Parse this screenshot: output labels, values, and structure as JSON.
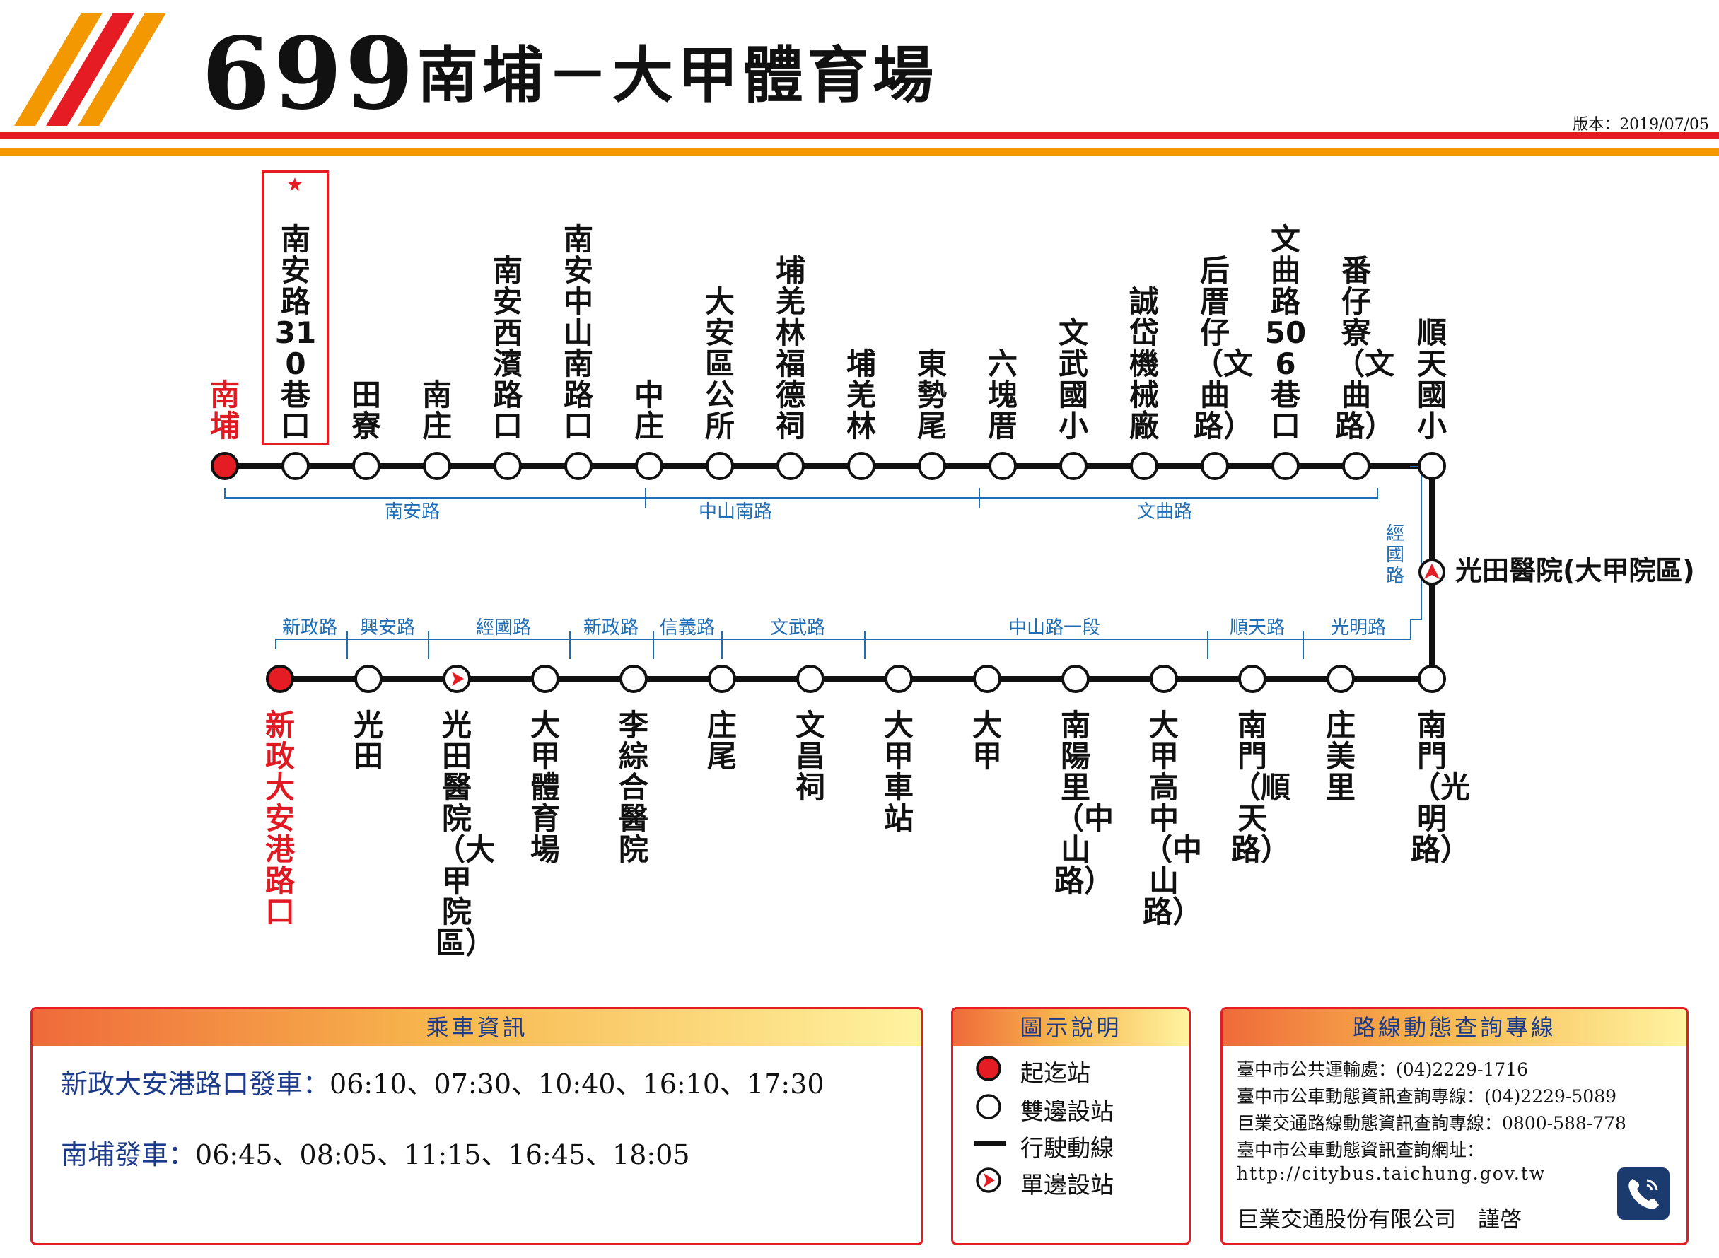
{
  "header": {
    "route_number": "699",
    "route_name": "南埔－大甲體育場",
    "version": "版本：2019/07/05"
  },
  "colors": {
    "red": "#e51c23",
    "orange": "#f39800",
    "road_blue": "#1f6db5",
    "title_blue": "#1b3a8a"
  },
  "route_top": {
    "stops": [
      {
        "name": "南埔",
        "type": "terminal"
      },
      {
        "name": "南安路310巷口",
        "type": "both",
        "highlight": true
      },
      {
        "name": "田寮",
        "type": "both"
      },
      {
        "name": "南庄",
        "type": "both"
      },
      {
        "name": "南安西濱路口",
        "type": "both"
      },
      {
        "name": "南安中山南路口",
        "type": "both"
      },
      {
        "name": "中庄",
        "type": "both"
      },
      {
        "name": "大安區公所",
        "type": "both"
      },
      {
        "name": "埔羌林福德祠",
        "type": "both"
      },
      {
        "name": "埔羌林",
        "type": "both"
      },
      {
        "name": "東勢尾",
        "type": "both"
      },
      {
        "name": "六塊厝",
        "type": "both"
      },
      {
        "name": "文武國小",
        "type": "both"
      },
      {
        "name": "誠岱機械廠",
        "type": "both"
      },
      {
        "name": "后厝仔（文曲路）",
        "type": "both"
      },
      {
        "name": "文曲路506巷口",
        "type": "both"
      },
      {
        "name": "番仔寮（文曲路）",
        "type": "both"
      },
      {
        "name": "順天國小",
        "type": "both"
      }
    ],
    "roads": [
      "南安路",
      "中山南路",
      "文曲路"
    ]
  },
  "branch": {
    "road": "經國路",
    "stop": "光田醫院(大甲院區)"
  },
  "route_bottom": {
    "stops": [
      {
        "name": "新政大安港路口",
        "type": "terminal"
      },
      {
        "name": "光田",
        "type": "both"
      },
      {
        "name": "光田醫院（大甲院區）",
        "type": "single"
      },
      {
        "name": "大甲體育場",
        "type": "both"
      },
      {
        "name": "李綜合醫院",
        "type": "both"
      },
      {
        "name": "庄尾",
        "type": "both"
      },
      {
        "name": "文昌祠",
        "type": "both"
      },
      {
        "name": "大甲車站",
        "type": "both"
      },
      {
        "name": "大甲",
        "type": "both"
      },
      {
        "name": "南陽里（中山路）",
        "type": "both"
      },
      {
        "name": "大甲高中（中山路）",
        "type": "both"
      },
      {
        "name": "南門（順天路）",
        "type": "both"
      },
      {
        "name": "庄美里",
        "type": "both"
      },
      {
        "name": "南門（光明路）",
        "type": "both"
      }
    ],
    "roads": [
      "新政路",
      "興安路",
      "經國路",
      "新政路",
      "信義路",
      "文武路",
      "中山路一段",
      "順天路",
      "光明路"
    ]
  },
  "info_panel": {
    "title": "乘車資訊",
    "lines": [
      {
        "label": "新政大安港路口發車：",
        "times": "06:10、07:30、10:40、16:10、17:30"
      },
      {
        "label": "南埔發車：",
        "times": "06:45、08:05、11:15、16:45、18:05"
      }
    ]
  },
  "legend_panel": {
    "title": "圖示說明",
    "items": [
      {
        "icon": "terminal-dot-icon",
        "label": "起迄站"
      },
      {
        "icon": "both-sides-circle-icon",
        "label": "雙邊設站"
      },
      {
        "icon": "route-line-icon",
        "label": "行駛動線"
      },
      {
        "icon": "one-side-arrow-icon",
        "label": "單邊設站"
      }
    ]
  },
  "contact_panel": {
    "title": "路線動態查詢專線",
    "lines": [
      "臺中市公共運輸處：(04)2229-1716",
      "臺中市公車動態資訊查詢專線：(04)2229-5089",
      "巨業交通路線動態資訊查詢專線：0800-588-778",
      "臺中市公車動態資訊查詢網址：",
      "http://citybus.taichung.gov.tw"
    ],
    "signature": "巨業交通股份有限公司　謹啓",
    "icon": "phone-icon"
  }
}
